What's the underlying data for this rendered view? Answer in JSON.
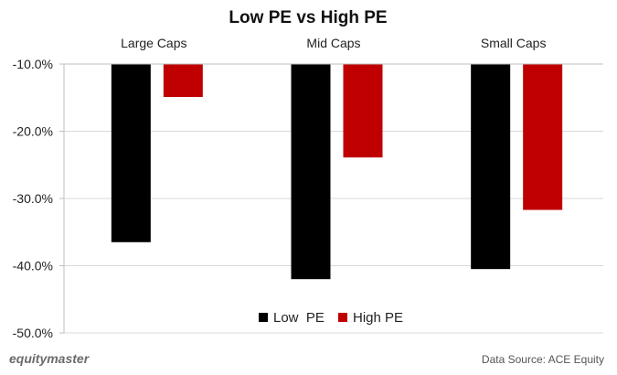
{
  "chart_data": {
    "type": "bar",
    "title": "Low PE vs High PE",
    "categories": [
      "Large Caps",
      "Mid Caps",
      "Small Caps"
    ],
    "series": [
      {
        "name": "Low  PE",
        "color": "#000000",
        "values": [
          -36.5,
          -42.0,
          -40.5
        ]
      },
      {
        "name": "High PE",
        "color": "#c00000",
        "values": [
          -14.9,
          -23.9,
          -31.7
        ]
      }
    ],
    "ylim": [
      -50,
      -10
    ],
    "yticks": [
      -10,
      -20,
      -30,
      -40,
      -50
    ],
    "ytick_labels": [
      "-10.0%",
      "-20.0%",
      "-30.0%",
      "-40.0%",
      "-50.0%"
    ],
    "category_axis": "top",
    "grid": true,
    "legend": "bottom-center"
  },
  "footer": {
    "brand": "equitymaster",
    "source": "Data Source: ACE Equity"
  }
}
